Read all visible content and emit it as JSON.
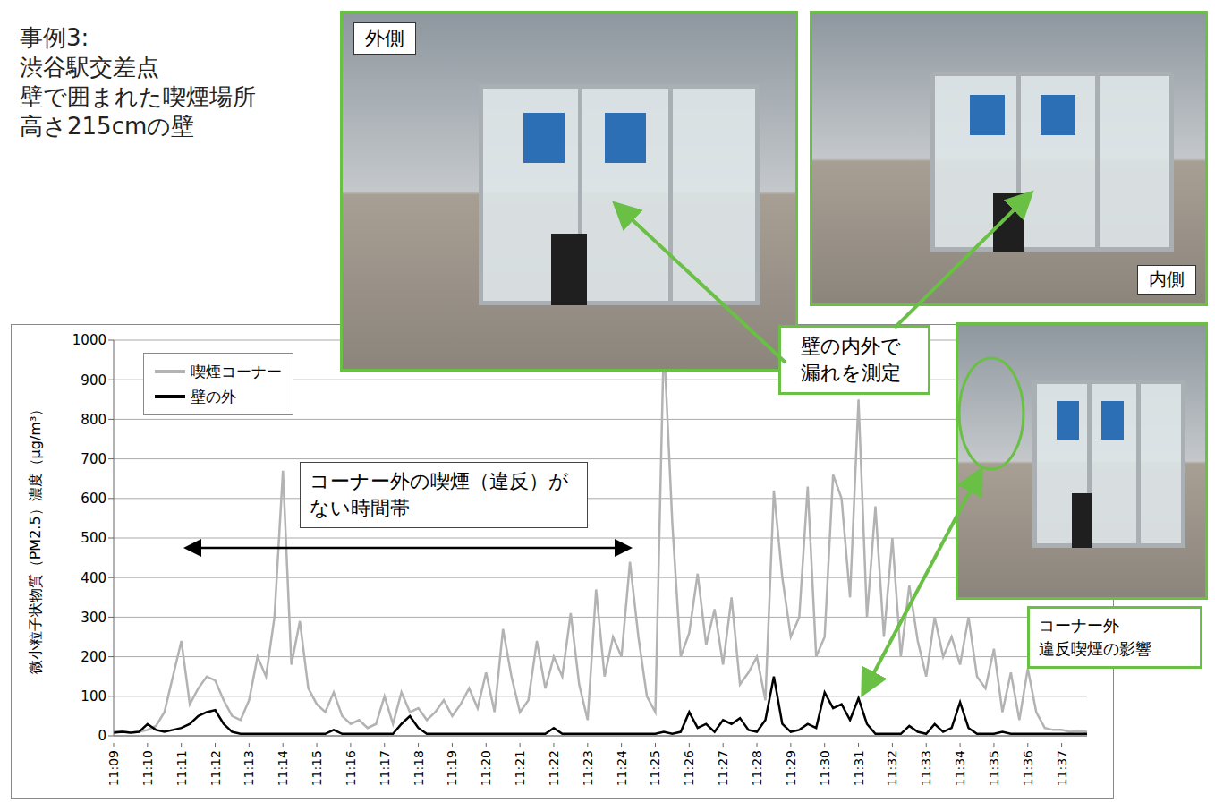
{
  "chart_data": {
    "type": "line",
    "title": [
      "事例3:",
      "渋谷駅交差点",
      "壁で囲まれた喫煙場所",
      "高さ215cmの壁"
    ],
    "y_label": "微小粒子状物質（PM2.5）濃度（μg/m³）",
    "categories": [
      "11:09",
      null,
      null,
      null,
      "11:10",
      null,
      null,
      null,
      "11:11",
      null,
      null,
      null,
      "11:12",
      null,
      null,
      null,
      "11:13",
      null,
      null,
      null,
      "11:14",
      null,
      null,
      null,
      "11:15",
      null,
      null,
      null,
      "11:16",
      null,
      null,
      null,
      "11:17",
      null,
      null,
      null,
      "11:18",
      null,
      null,
      null,
      "11:19",
      null,
      null,
      null,
      "11:20",
      null,
      null,
      null,
      "11:21",
      null,
      null,
      null,
      "11:22",
      null,
      null,
      null,
      "11:23",
      null,
      null,
      null,
      "11:24",
      null,
      null,
      null,
      "11:25",
      null,
      null,
      null,
      "11:26",
      null,
      null,
      null,
      "11:27",
      null,
      null,
      null,
      "11:28",
      null,
      null,
      null,
      "11:29",
      null,
      null,
      null,
      "11:30",
      null,
      null,
      null,
      "11:31",
      null,
      null,
      null,
      "11:32",
      null,
      null,
      null,
      "11:33",
      null,
      null,
      null,
      "11:34",
      null,
      null,
      null,
      "11:35",
      null,
      null,
      null,
      "11:36",
      null,
      null,
      null,
      "11:37",
      null,
      null,
      null
    ],
    "series": [
      {
        "name": "喫煙コーナー",
        "color": "#b3b3b3",
        "values": [
          10,
          12,
          8,
          10,
          15,
          25,
          60,
          150,
          240,
          80,
          120,
          150,
          140,
          90,
          50,
          40,
          90,
          200,
          150,
          300,
          670,
          180,
          290,
          120,
          80,
          60,
          110,
          50,
          30,
          40,
          20,
          30,
          100,
          30,
          110,
          60,
          70,
          40,
          60,
          90,
          50,
          80,
          120,
          70,
          160,
          60,
          270,
          150,
          60,
          90,
          240,
          120,
          200,
          150,
          310,
          130,
          40,
          370,
          150,
          250,
          200,
          440,
          250,
          100,
          60,
          1000,
          540,
          200,
          260,
          410,
          230,
          320,
          180,
          350,
          130,
          160,
          200,
          90,
          620,
          400,
          250,
          300,
          630,
          200,
          250,
          660,
          600,
          350,
          850,
          300,
          580,
          250,
          500,
          200,
          380,
          240,
          150,
          300,
          200,
          250,
          180,
          300,
          150,
          120,
          220,
          60,
          160,
          40,
          170,
          60,
          20,
          15,
          15,
          10,
          12,
          10
        ]
      },
      {
        "name": "壁の外",
        "color": "#000000",
        "values": [
          8,
          10,
          8,
          10,
          30,
          15,
          10,
          15,
          20,
          30,
          50,
          60,
          65,
          30,
          10,
          5,
          5,
          5,
          5,
          5,
          5,
          5,
          5,
          5,
          5,
          5,
          15,
          5,
          5,
          5,
          5,
          5,
          5,
          5,
          30,
          50,
          20,
          5,
          5,
          5,
          5,
          5,
          5,
          5,
          5,
          5,
          5,
          5,
          5,
          5,
          5,
          5,
          20,
          5,
          5,
          5,
          5,
          5,
          5,
          5,
          5,
          5,
          5,
          5,
          5,
          10,
          5,
          10,
          60,
          20,
          30,
          10,
          40,
          30,
          45,
          15,
          10,
          40,
          150,
          30,
          10,
          15,
          30,
          20,
          110,
          70,
          80,
          40,
          95,
          30,
          5,
          5,
          5,
          5,
          25,
          10,
          5,
          30,
          10,
          20,
          85,
          20,
          5,
          5,
          5,
          10,
          5,
          5,
          5,
          5,
          5,
          5,
          5,
          5,
          5,
          5
        ]
      }
    ],
    "ylim": [
      0,
      1000
    ],
    "yticks": [
      0,
      100,
      200,
      300,
      400,
      500,
      600,
      700,
      800,
      900,
      1000
    ],
    "grid": true,
    "legend": "upper left",
    "annotations": [
      "コーナー外の喫煙（違反）がない時間帯",
      "壁の内外で漏れを測定",
      "コーナー外\n違反喫煙の影響"
    ],
    "photo_labels": [
      "外側",
      "内側"
    ]
  }
}
